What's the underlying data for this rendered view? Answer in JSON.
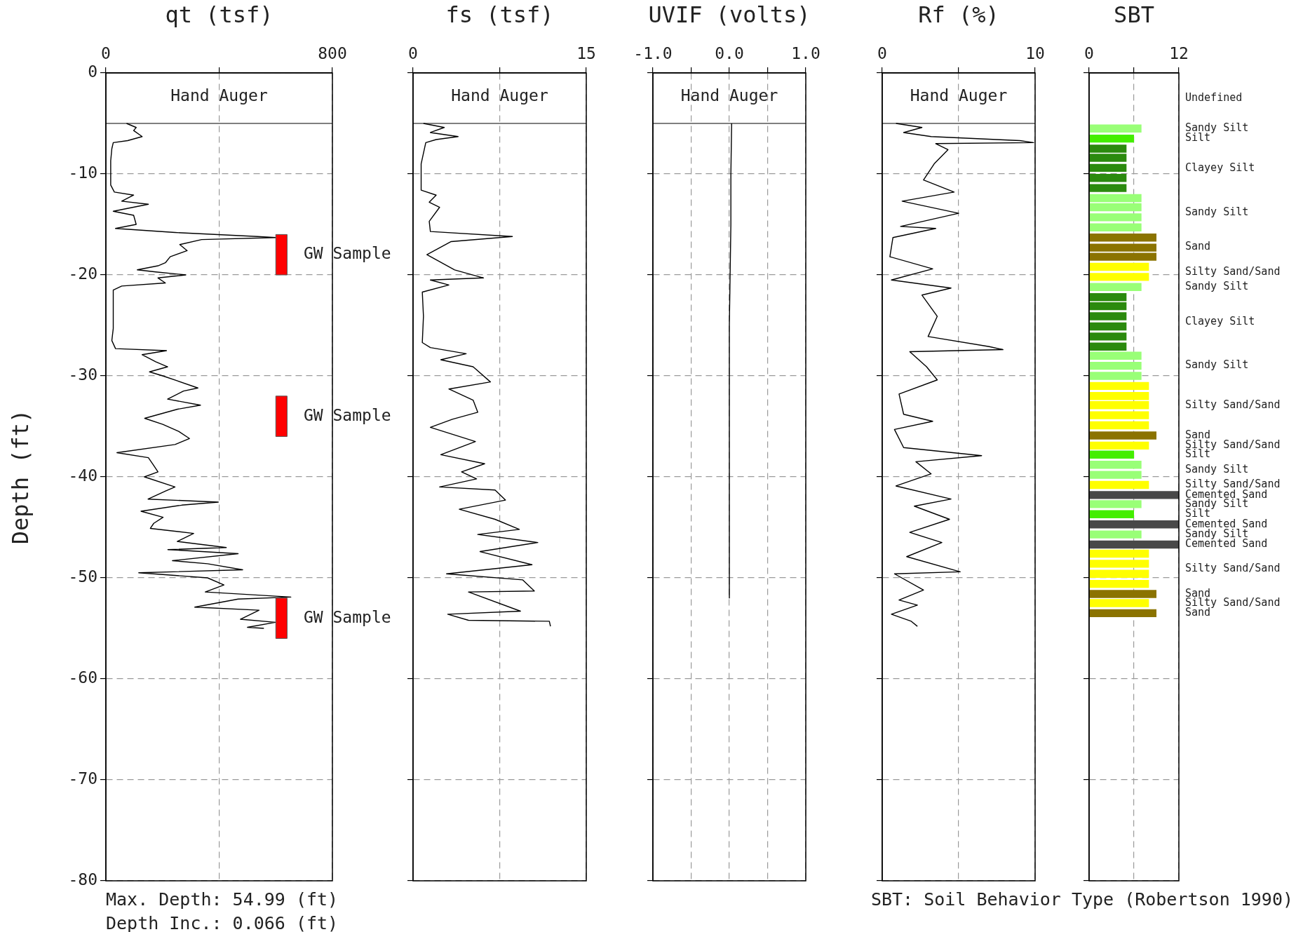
{
  "chart_data": [
    {
      "type": "line",
      "title": "qt (tsf)",
      "ylabel": "Depth (ft)",
      "xlim": [
        0,
        800
      ],
      "xticks": [
        0,
        {
          "value": 400,
          "label": null
        },
        800
      ],
      "ylim": [
        -80,
        0
      ],
      "yticks": [
        0,
        -10,
        -20,
        -30,
        -40,
        -50,
        -60,
        -70,
        -80
      ],
      "grid": true,
      "legend": false,
      "marker": "none",
      "line_style": "solid",
      "series": [
        {
          "color": "#000000",
          "x": [
            73,
            107,
            98,
            128,
            77,
            26,
            21,
            17,
            17,
            30,
            98,
            56,
            150,
            26,
            98,
            107,
            34,
            244,
            535,
            599,
            338,
            261,
            287,
            227,
            210,
            184,
            111,
            176,
            282,
            184,
            210,
            56,
            26,
            26,
            21,
            34,
            214,
            128,
            176,
            218,
            154,
            201,
            253,
            325,
            274,
            218,
            334,
            253,
            137,
            201,
            257,
            295,
            244,
            39,
            150,
            167,
            184,
            136,
            244,
            211,
            149,
            397,
            268,
            124,
            202,
            169,
            157,
            310,
            252,
            425,
            219,
            467,
            235,
            359,
            483,
            116,
            359,
            417,
            351,
            653,
            467,
            314,
            541,
            475,
            599,
            500,
            558
          ],
          "values": [
            -5,
            -5.4,
            -5.7,
            -6.3,
            -6.7,
            -6.9,
            -7.5,
            -8.7,
            -11.1,
            -11.8,
            -12.1,
            -12.7,
            -13,
            -13.7,
            -14.1,
            -15,
            -15.4,
            -15.8,
            -16.2,
            -16.3,
            -16.5,
            -17,
            -17.6,
            -18.2,
            -18.8,
            -19.1,
            -19.5,
            -19.7,
            -20,
            -20.3,
            -20.8,
            -21.1,
            -21.5,
            -25.3,
            -26.5,
            -27.3,
            -27.5,
            -27.9,
            -28.6,
            -29.1,
            -29.6,
            -30,
            -30.5,
            -31.2,
            -31.5,
            -32.3,
            -32.9,
            -33.3,
            -34.2,
            -34.8,
            -35.5,
            -36.2,
            -36.8,
            -37.6,
            -38.1,
            -38.8,
            -39.5,
            -40,
            -41,
            -41.4,
            -42.2,
            -42.5,
            -42.8,
            -43.4,
            -44,
            -44.6,
            -45.1,
            -45.6,
            -46.4,
            -47,
            -47.2,
            -47.6,
            -48.3,
            -48.6,
            -49.2,
            -49.5,
            -50,
            -50.7,
            -51.4,
            -51.9,
            -52.1,
            -52.9,
            -53.2,
            -54.1,
            -54.4,
            -54.9,
            -55
          ]
        }
      ],
      "ref_lines": [
        {
          "axis": "y",
          "value": -5,
          "label": "Hand Auger",
          "color": "#000000"
        }
      ],
      "bands": [
        {
          "axis": "y",
          "from": -16,
          "to": -20,
          "label": "GW Sample",
          "color": "#ff0000"
        },
        {
          "axis": "y",
          "from": -32,
          "to": -36,
          "label": "GW Sample",
          "color": "#ff0000"
        },
        {
          "axis": "y",
          "from": -52,
          "to": -56,
          "label": "GW Sample",
          "color": "#ff0000"
        }
      ],
      "annotations": [
        "Max. Depth: 54.99 (ft)",
        "Depth Inc.: 0.066 (ft)"
      ]
    },
    {
      "type": "line",
      "title": "fs (tsf)",
      "xlim": [
        0,
        15
      ],
      "xticks": [
        0,
        {
          "value": 7.5,
          "label": null
        },
        15
      ],
      "ylim": [
        -80,
        0
      ],
      "yticks": [
        0,
        -10,
        -20,
        -30,
        -40,
        -50,
        -60,
        -70,
        -80
      ],
      "tick_labels": "x",
      "grid": true,
      "legend": false,
      "marker": "none",
      "line_style": "solid",
      "series": [
        {
          "color": "#000000",
          "x": [
            0.9,
            2.7,
            1.5,
            3.9,
            2.0,
            1.1,
            0.7,
            0.7,
            2.0,
            1.4,
            2.3,
            1.4,
            1.5,
            8.6,
            3.3,
            1.2,
            3.6,
            6.1,
            1.5,
            3.1,
            0.8,
            0.9,
            0.8,
            1.5,
            4.6,
            2.4,
            5.2,
            6.7,
            3.1,
            5.2,
            5.6,
            3.4,
            1.5,
            5.4,
            2.4,
            6.2,
            4.2,
            5.5,
            2.3,
            7.1,
            8.0,
            4.0,
            7.1,
            9.2,
            5.6,
            10.8,
            5.8,
            10.3,
            2.9,
            9.5,
            10.5,
            4.8,
            9.3,
            3.0,
            4.8,
            11.8,
            11.9
          ],
          "values": [
            -5,
            -5.4,
            -5.9,
            -6.3,
            -6.6,
            -6.9,
            -9,
            -11.6,
            -12.1,
            -12.8,
            -13.3,
            -14.7,
            -15.7,
            -16.2,
            -16.7,
            -18,
            -19.5,
            -20.3,
            -20.5,
            -21,
            -21.7,
            -24.1,
            -26.7,
            -27.2,
            -27.8,
            -28.4,
            -29.1,
            -30.6,
            -31.3,
            -32.4,
            -33.6,
            -34.3,
            -35.1,
            -36.5,
            -37.8,
            -38.7,
            -39.5,
            -40.2,
            -41,
            -41.3,
            -42.3,
            -43.2,
            -44.2,
            -45.2,
            -45.7,
            -46.5,
            -47.4,
            -48.7,
            -49.6,
            -50.2,
            -51.3,
            -51.4,
            -53.3,
            -53.6,
            -54.2,
            -54.3,
            -54.8
          ]
        }
      ],
      "ref_lines": [
        {
          "axis": "y",
          "value": -5,
          "label": "Hand Auger",
          "color": "#000000"
        }
      ]
    },
    {
      "type": "line",
      "title": "UVIF (volts)",
      "xlim": [
        -1,
        1
      ],
      "xticks": [
        {
          "value": -1,
          "label": "-1.0"
        },
        {
          "value": -0.5,
          "label": null
        },
        {
          "value": 0,
          "label": "0.0"
        },
        {
          "value": 0.5,
          "label": null
        },
        {
          "value": 1,
          "label": "1.0"
        }
      ],
      "ylim": [
        -80,
        0
      ],
      "yticks": [
        0,
        -10,
        -20,
        -30,
        -40,
        -50,
        -60,
        -70,
        -80
      ],
      "tick_labels": "x",
      "grid": true,
      "legend": false,
      "marker": "none",
      "line_style": "solid",
      "series": [
        {
          "color": "#000000",
          "x": [
            0.03,
            0.02,
            0.02,
            0.01,
            0.0,
            0.0,
            0.0,
            0.0,
            0.0
          ],
          "values": [
            -5,
            -10,
            -15,
            -20,
            -25,
            -30,
            -40,
            -50,
            -52
          ]
        }
      ],
      "ref_lines": [
        {
          "axis": "y",
          "value": -5,
          "label": "Hand Auger",
          "color": "#000000"
        }
      ]
    },
    {
      "type": "line",
      "title": "Rf (%)",
      "xlim": [
        0,
        10
      ],
      "xticks": [
        0,
        {
          "value": 5,
          "label": null
        },
        10
      ],
      "ylim": [
        -80,
        0
      ],
      "yticks": [
        0,
        -10,
        -20,
        -30,
        -40,
        -50,
        -60,
        -70,
        -80
      ],
      "tick_labels": "x",
      "grid": true,
      "legend": false,
      "marker": "none",
      "line_style": "solid",
      "series": [
        {
          "color": "#000000",
          "x": [
            0.9,
            2.6,
            1.4,
            3.2,
            9.0,
            9.9,
            3.5,
            4.3,
            3.4,
            2.7,
            4.7,
            1.3,
            5.0,
            1.2,
            3.5,
            0.7,
            0.5,
            3.3,
            0.6,
            4.5,
            2.6,
            3.6,
            3.0,
            7.0,
            7.9,
            1.8,
            2.9,
            3.6,
            1.1,
            1.4,
            3.3,
            0.8,
            1.4,
            6.5,
            2.2,
            3.2,
            0.9,
            4.5,
            2.1,
            4.4,
            1.8,
            3.9,
            1.6,
            5.1,
            0.8,
            2.7,
            1.1,
            2.3,
            0.6,
            1.9,
            2.3
          ],
          "values": [
            -5,
            -5.4,
            -5.9,
            -6.3,
            -6.7,
            -6.9,
            -7,
            -7.6,
            -9,
            -10.6,
            -11.8,
            -12.7,
            -13.9,
            -15.2,
            -15.4,
            -16.3,
            -18.2,
            -19.4,
            -20.5,
            -21.3,
            -22,
            -24.1,
            -26.1,
            -27.1,
            -27.4,
            -27.6,
            -29.1,
            -30.4,
            -31.8,
            -33.8,
            -34.5,
            -35.3,
            -37.1,
            -37.9,
            -38.5,
            -39.7,
            -40.9,
            -42.2,
            -42.9,
            -44.2,
            -45.5,
            -46.5,
            -47.9,
            -49.4,
            -49.6,
            -51.2,
            -52.2,
            -52.7,
            -53.6,
            -54.3,
            -54.8
          ]
        }
      ],
      "ref_lines": [
        {
          "axis": "y",
          "value": -5,
          "label": "Hand Auger",
          "color": "#000000"
        }
      ]
    },
    {
      "type": "bar",
      "orientation": "horizontal",
      "title": "SBT",
      "xlim": [
        0,
        12
      ],
      "xticks": [
        0,
        {
          "value": 6,
          "label": null
        },
        12
      ],
      "ylim": [
        -80,
        0
      ],
      "yticks": [
        0,
        -10,
        -20,
        -30,
        -40,
        -50,
        -60,
        -70,
        -80
      ],
      "tick_labels": "x",
      "grid": true,
      "legend": false,
      "x": [
        -5.5,
        -6.5,
        -7.5,
        -8.4,
        -9.4,
        -10.4,
        -11.4,
        -12.4,
        -13.3,
        -14.3,
        -15.3,
        -16.3,
        -17.3,
        -18.2,
        -19.2,
        -20.2,
        -21.2,
        -22.2,
        -23.1,
        -24.1,
        -25.1,
        -26.1,
        -27.1,
        -28.0,
        -29.0,
        -30.0,
        -31.0,
        -32.0,
        -32.9,
        -33.9,
        -34.9,
        -35.9,
        -36.9,
        -37.8,
        -38.8,
        -39.8,
        -40.8,
        -41.8,
        -42.7,
        -43.7,
        -44.7,
        -45.7,
        -46.7,
        -47.6,
        -48.6,
        -49.6,
        -50.6,
        -51.6,
        -52.5,
        -53.5
      ],
      "values": [
        7,
        6,
        5,
        5,
        5,
        5,
        5,
        7,
        7,
        7,
        7,
        9,
        9,
        9,
        8,
        8,
        7,
        5,
        5,
        5,
        5,
        5,
        5,
        7,
        7,
        7,
        8,
        8,
        8,
        8,
        8,
        9,
        8,
        6,
        7,
        7,
        8,
        12,
        7,
        6,
        12,
        7,
        12,
        8,
        8,
        8,
        8,
        9,
        8,
        9
      ],
      "colors": [
        "#99ff77",
        "#44ee00",
        "#2b8a0e",
        "#2b8a0e",
        "#2b8a0e",
        "#2b8a0e",
        "#2b8a0e",
        "#99ff77",
        "#99ff77",
        "#99ff77",
        "#99ff77",
        "#8b7300",
        "#8b7300",
        "#8b7300",
        "#ffff00",
        "#ffff00",
        "#99ff77",
        "#2b8a0e",
        "#2b8a0e",
        "#2b8a0e",
        "#2b8a0e",
        "#2b8a0e",
        "#2b8a0e",
        "#99ff77",
        "#99ff77",
        "#99ff77",
        "#ffff00",
        "#ffff00",
        "#ffff00",
        "#ffff00",
        "#ffff00",
        "#8b7300",
        "#ffff00",
        "#44ee00",
        "#99ff77",
        "#99ff77",
        "#ffff00",
        "#484848",
        "#99ff77",
        "#44ee00",
        "#484848",
        "#99ff77",
        "#484848",
        "#ffff00",
        "#ffff00",
        "#ffff00",
        "#ffff00",
        "#8b7300",
        "#ffff00",
        "#8b7300"
      ],
      "annotations": [
        "Undefined",
        "Sandy Silt",
        "Silt",
        "Clayey Silt",
        "Sandy Silt",
        "Sand",
        "Silty Sand/Sand",
        "Sandy Silt",
        "Clayey Silt",
        "Sandy Silt",
        "Silty Sand/Sand",
        "Sand",
        "Silty Sand/Sand",
        "Silt",
        "Sandy Silt",
        "Silty Sand/Sand",
        "Cemented Sand",
        "Sandy Silt",
        "Silt",
        "Cemented Sand",
        "Sandy Silt",
        "Cemented Sand",
        "Silty Sand/Sand",
        "Sand",
        "Silty Sand/Sand",
        "Sand",
        "SBT: Soil Behavior Type (Robertson 1990)"
      ]
    }
  ]
}
